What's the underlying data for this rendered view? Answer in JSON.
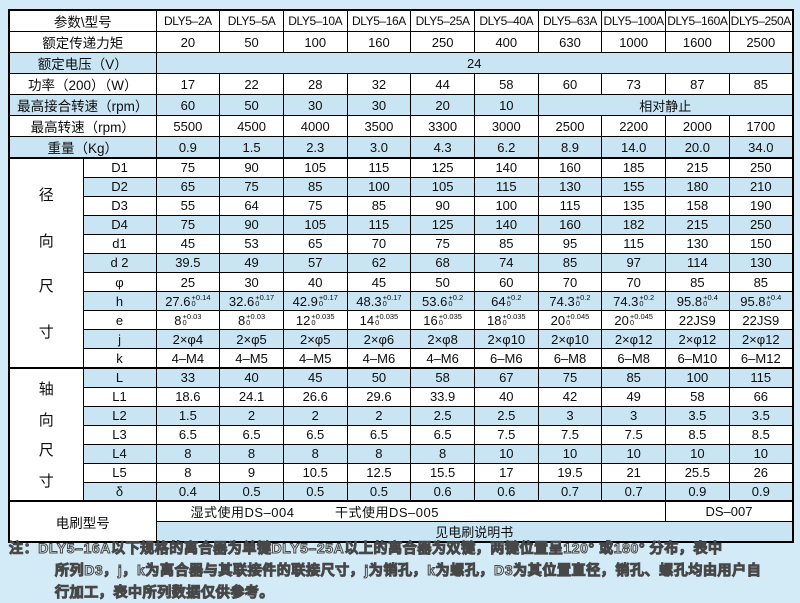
{
  "table": {
    "header": {
      "param_label": "参数\\型号",
      "models": [
        "DLY5–2A",
        "DLY5–5A",
        "DLY5–10A",
        "DLY5–16A",
        "DLY5–25A",
        "DLY5–40A",
        "DLY5–63A",
        "DLY5–100A",
        "DLY5–160A",
        "DLY5–250A"
      ]
    },
    "rows_top": [
      {
        "label": "额定传递力矩",
        "cells": [
          "20",
          "50",
          "100",
          "160",
          "250",
          "400",
          "630",
          "1000",
          "1600",
          "2500"
        ]
      },
      {
        "label": "额定电压（V）",
        "cells": [
          {
            "t": "24",
            "span": 10
          }
        ]
      },
      {
        "label": "功率（200）（W）",
        "cells": [
          "17",
          "22",
          "28",
          "32",
          "44",
          "58",
          "60",
          "73",
          "87",
          "85"
        ]
      },
      {
        "label": "最高接合转速（rpm）",
        "cells": [
          "60",
          "50",
          "30",
          "30",
          "20",
          "10",
          {
            "t": "相对静止",
            "span": 4
          }
        ]
      },
      {
        "label": "最高转速（rpm）",
        "cells": [
          "5500",
          "4500",
          "4000",
          "3500",
          "3300",
          "3000",
          "2500",
          "2200",
          "2000",
          "1700"
        ]
      },
      {
        "label": "重量（Kg）",
        "cells": [
          "0.9",
          "1.5",
          "2.3",
          "3.0",
          "4.3",
          "6.2",
          "8.9",
          "14.0",
          "20.0",
          "34.0"
        ]
      }
    ],
    "groups": [
      {
        "name": "radial",
        "label": "径向尺寸",
        "rows": [
          {
            "label": "D1",
            "cells": [
              "75",
              "90",
              "105",
              "115",
              "125",
              "140",
              "160",
              "185",
              "215",
              "250"
            ]
          },
          {
            "label": "D2",
            "cells": [
              "65",
              "75",
              "85",
              "100",
              "105",
              "115",
              "130",
              "155",
              "180",
              "210"
            ]
          },
          {
            "label": "D3",
            "cells": [
              "55",
              "64",
              "75",
              "85",
              "90",
              "100",
              "115",
              "135",
              "158",
              "190"
            ]
          },
          {
            "label": "D4",
            "cells": [
              "75",
              "90",
              "105",
              "115",
              "125",
              "140",
              "160",
              "182",
              "215",
              "250"
            ]
          },
          {
            "label": "d1",
            "cells": [
              "45",
              "53",
              "65",
              "70",
              "75",
              "85",
              "95",
              "115",
              "130",
              "150"
            ]
          },
          {
            "label": "d 2",
            "cells": [
              "39.5",
              "49",
              "57",
              "62",
              "68",
              "74",
              "85",
              "97",
              "114",
              "130"
            ]
          },
          {
            "label": "φ",
            "cells": [
              "25",
              "30",
              "40",
              "45",
              "50",
              "60",
              "70",
              "70",
              "85",
              "85"
            ]
          },
          {
            "label": "h",
            "cells": [
              "27.6|+0.14|0",
              "32.6|+0.17|0",
              "42.9|+0.17|0",
              "48.3|+0.17|0",
              "53.6|+0.2|0",
              "64|+0.2|0",
              "74.3|+0.2|0",
              "74.3|+0.2|0",
              "95.8|+0.4|0",
              "95.8|+0.4|0"
            ]
          },
          {
            "label": "e",
            "cells": [
              "8|+0.03|0",
              "8|+0.03|0",
              "12|+0.035|0",
              "14|+0.035|0",
              "16|+0.035|0",
              "18|+0.035|0",
              "20|+0.045|0",
              "20|+0.045|0",
              "22JS9",
              "22JS9"
            ]
          },
          {
            "label": "j",
            "cells": [
              "2×φ4",
              "2×φ5",
              "2×φ5",
              "2×φ6",
              "2×φ8",
              "2×φ10",
              "2×φ10",
              "2×φ12",
              "2×φ12",
              "2×φ12"
            ]
          },
          {
            "label": "k",
            "cells": [
              "4–M4",
              "4–M5",
              "4–M5",
              "4–M6",
              "4–M6",
              "6–M6",
              "6–M8",
              "6–M8",
              "6–M10",
              "6–M12"
            ]
          }
        ]
      },
      {
        "name": "axial",
        "label": "轴向尺寸",
        "rows": [
          {
            "label": "L",
            "cells": [
              "33",
              "40",
              "45",
              "50",
              "58",
              "67",
              "75",
              "85",
              "100",
              "115"
            ]
          },
          {
            "label": "L1",
            "cells": [
              "18.6",
              "24.1",
              "26.6",
              "29.6",
              "33.9",
              "40",
              "42",
              "49",
              "58",
              "66"
            ]
          },
          {
            "label": "L2",
            "cells": [
              "1.5",
              "2",
              "2",
              "2",
              "2.5",
              "2.5",
              "3",
              "3",
              "3.5",
              "3.5"
            ]
          },
          {
            "label": "L3",
            "cells": [
              "6.5",
              "6.5",
              "6.5",
              "6.5",
              "6.5",
              "7.5",
              "7.5",
              "7.5",
              "8.5",
              "8.5"
            ]
          },
          {
            "label": "L4",
            "cells": [
              "8",
              "8",
              "8",
              "8",
              "8",
              "10",
              "10",
              "10",
              "10",
              "10"
            ]
          },
          {
            "label": "L5",
            "cells": [
              "8",
              "9",
              "10.5",
              "12.5",
              "15.5",
              "17",
              "19.5",
              "21",
              "25.5",
              "26"
            ]
          },
          {
            "label": "δ",
            "cells": [
              "0.4",
              "0.5",
              "0.5",
              "0.5",
              "0.6",
              "0.6",
              "0.7",
              "0.7",
              "0.9",
              "0.9"
            ]
          }
        ]
      }
    ],
    "brush": {
      "label": "电刷型号",
      "wet_dry": "湿式使用DS–004　　　干式使用DS–005",
      "ds007": "DS–007",
      "manual": "见电刷说明书"
    }
  },
  "note": {
    "line1": "注：DLY5–16A以下规格的离合器为单键DLY5–25A以上的离合器为双键，两键位置呈120° 或180° 分布，表中",
    "line2": "所列D3，j，k为离合器与其联接件的联接尺寸，j为销孔，k为螺孔，D3为其位置直径，销孔、螺孔均由用户自",
    "line3": "行加工，表中所列数据仅供参考。"
  }
}
